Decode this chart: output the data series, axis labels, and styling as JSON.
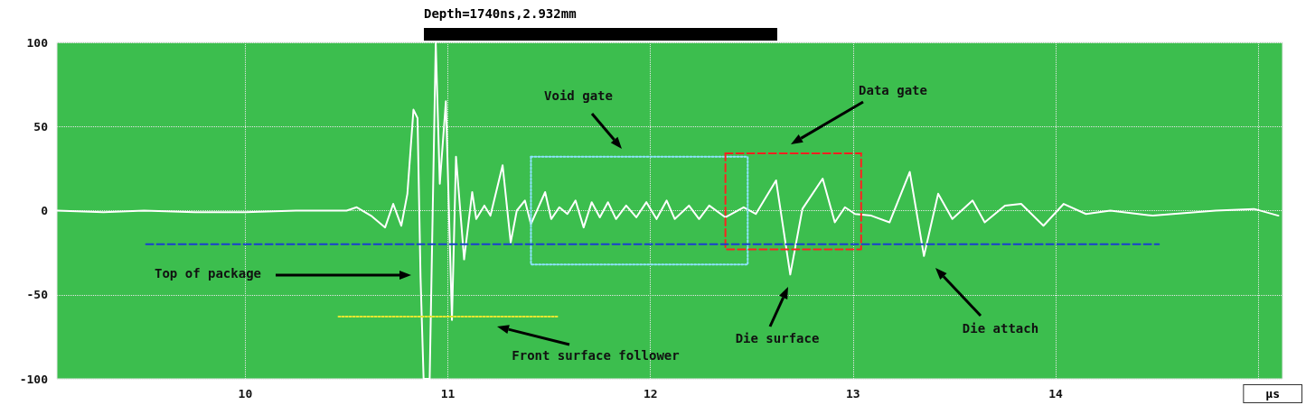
{
  "chart_data": {
    "type": "line",
    "xlabel": "µs",
    "xlim": [
      9.07,
      15.12
    ],
    "xticks": [
      10,
      11,
      12,
      13,
      14,
      {
        "value": 15,
        "label": null
      }
    ],
    "ylim": [
      -100,
      100
    ],
    "yticks": [
      -100,
      -50,
      0,
      50,
      100
    ],
    "grid": true,
    "marker": "none",
    "series": [
      {
        "color": "#ffffff",
        "line_style": "solid",
        "x": [
          9.07,
          9.3,
          9.5,
          9.75,
          10.0,
          10.25,
          10.5,
          10.55,
          10.62,
          10.69,
          10.73,
          10.77,
          10.8,
          10.83,
          10.85,
          10.865,
          10.88,
          10.91,
          10.94,
          10.96,
          10.99,
          11.02,
          11.04,
          11.08,
          11.12,
          11.14,
          11.18,
          11.21,
          11.27,
          11.31,
          11.34,
          11.38,
          11.41,
          11.48,
          11.51,
          11.55,
          11.59,
          11.63,
          11.67,
          11.71,
          11.75,
          11.79,
          11.83,
          11.88,
          11.93,
          11.98,
          12.03,
          12.08,
          12.12,
          12.19,
          12.24,
          12.29,
          12.37,
          12.46,
          12.52,
          12.62,
          12.69,
          12.75,
          12.85,
          12.91,
          12.96,
          13.01,
          13.09,
          13.18,
          13.28,
          13.35,
          13.42,
          13.49,
          13.59,
          13.65,
          13.75,
          13.83,
          13.94,
          14.04,
          14.15,
          14.27,
          14.48,
          14.79,
          14.98,
          15.1
        ],
        "values": [
          0,
          -1,
          0,
          -1,
          -1,
          0,
          0,
          2,
          -3,
          -10,
          4,
          -9,
          10,
          60,
          55,
          -40,
          -100,
          -100,
          100,
          16,
          65,
          -65,
          32,
          -29,
          11,
          -5,
          3,
          -3,
          27,
          -19,
          0,
          6,
          -8,
          11,
          -5,
          2,
          -2,
          6,
          -10,
          5,
          -4,
          5,
          -5,
          3,
          -4,
          5,
          -5,
          6,
          -5,
          3,
          -5,
          3,
          -4,
          2,
          -2,
          18,
          -38,
          1,
          19,
          -7,
          2,
          -2,
          -3,
          -7,
          23,
          -27,
          10,
          -5,
          6,
          -7,
          3,
          4,
          -9,
          4,
          -2,
          0,
          -3,
          0,
          1,
          -3
        ]
      },
      {
        "color": "#8fe3ff",
        "line_style": "dotted",
        "x": [
          11.41,
          11.41,
          12.48,
          12.48
        ],
        "values": [
          32,
          -32,
          -32,
          32
        ]
      },
      {
        "color": "#8fe3ff",
        "line_style": "dotted",
        "x": [
          11.41,
          12.48
        ],
        "values": [
          32,
          32
        ]
      },
      {
        "color": "#ff2020",
        "line_style": "dashed",
        "x": [
          12.37,
          12.37,
          13.04,
          13.04
        ],
        "values": [
          34,
          -23,
          -23,
          34
        ]
      },
      {
        "color": "#ff2020",
        "line_style": "dashed",
        "x": [
          12.37,
          13.04
        ],
        "values": [
          34,
          34
        ]
      },
      {
        "color": "#1a3fd0",
        "line_style": "dashed",
        "x": [
          9.51,
          14.51
        ],
        "values": [
          -20,
          -20
        ]
      },
      {
        "color": "#e8e830",
        "line_style": "dotted",
        "x": [
          10.46,
          11.54
        ],
        "values": [
          -63,
          -63
        ]
      }
    ],
    "title": "Depth=1740ns,2.932mm",
    "annotations": [
      "Top of package",
      "Void gate",
      "Data gate",
      "Die surface",
      "Die attach",
      "Front surface follower"
    ]
  }
}
